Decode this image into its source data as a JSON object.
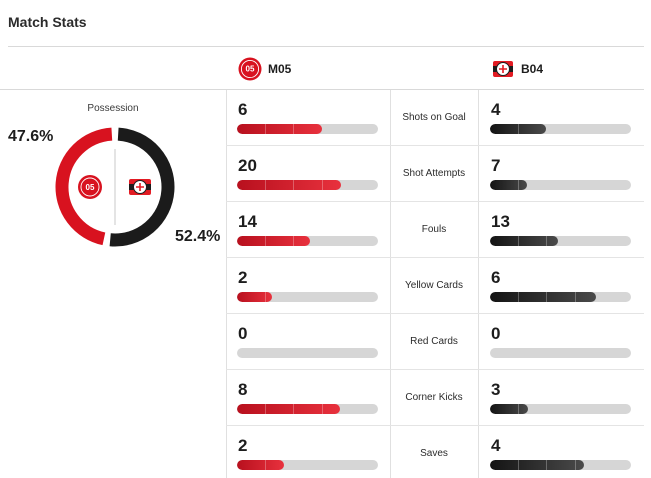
{
  "page": {
    "title": "Match Stats"
  },
  "teams": {
    "home": {
      "abbr": "M05",
      "color": "#d8121f"
    },
    "away": {
      "abbr": "B04",
      "color": "#1b1b1b"
    }
  },
  "possession": {
    "label": "Possession",
    "home_display": "47.6%",
    "away_display": "52.4%",
    "home_pct": 47.6,
    "away_pct": 52.4
  },
  "stats": [
    {
      "label": "Shots on Goal",
      "home": "6",
      "away": "4"
    },
    {
      "label": "Shot Attempts",
      "home": "20",
      "away": "7"
    },
    {
      "label": "Fouls",
      "home": "14",
      "away": "13"
    },
    {
      "label": "Yellow Cards",
      "home": "2",
      "away": "6"
    },
    {
      "label": "Red Cards",
      "home": "0",
      "away": "0"
    },
    {
      "label": "Corner Kicks",
      "home": "8",
      "away": "3"
    },
    {
      "label": "Saves",
      "home": "2",
      "away": "4"
    }
  ]
}
